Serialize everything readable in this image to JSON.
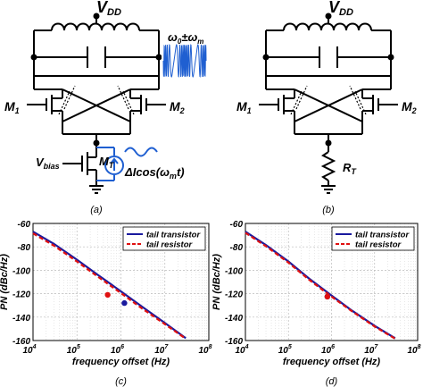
{
  "circuit_a": {
    "vdd": "V",
    "vdd_sub": "DD",
    "m1": "M",
    "m1_sub": "1",
    "m2": "M",
    "m2_sub": "2",
    "mt": "M",
    "mt_sub": "T",
    "vbias": "V",
    "vbias_sub": "bias",
    "mod_signal": "ΔIcos(ω",
    "mod_signal_sub": "m",
    "mod_signal_end": "t)",
    "sideband_label": "ω",
    "sideband_label_sub0": "0",
    "sideband_label_mid": "±ω",
    "sideband_label_sub1": "m",
    "caption": "(a)"
  },
  "circuit_b": {
    "vdd": "V",
    "vdd_sub": "DD",
    "m1": "M",
    "m1_sub": "1",
    "m2": "M",
    "m2_sub": "2",
    "rt": "R",
    "rt_sub": "T",
    "caption": "(b)"
  },
  "colors": {
    "tail_transistor": "#1a1a9e",
    "tail_resistor": "#e01010",
    "modulation": "#1f5fd1",
    "wire": "#000000"
  },
  "chart_data": [
    {
      "type": "line",
      "caption": "(c)",
      "xlabel": "frequency offset (Hz)",
      "ylabel": "PN (dBc/Hz)",
      "xscale": "log",
      "xlim": [
        10000,
        100000000
      ],
      "ylim": [
        -160,
        -60
      ],
      "x_ticks_exp": [
        "4",
        "5",
        "6",
        "7",
        "8"
      ],
      "x_ticks_base": "10",
      "y_ticks": [
        "-60",
        "-80",
        "-100",
        "-120",
        "-140",
        "-160"
      ],
      "grid": true,
      "legend": "top-right",
      "series": [
        {
          "name": "tail transistor",
          "style": "solid",
          "x": [
            10000,
            30000,
            100000,
            300000,
            1000000,
            3000000,
            10000000,
            30000000
          ],
          "y": [
            -67,
            -77.5,
            -91,
            -104,
            -118,
            -131,
            -145,
            -158
          ]
        },
        {
          "name": "tail resistor",
          "style": "dashed",
          "x": [
            10000,
            30000,
            100000,
            300000,
            1000000,
            3000000,
            10000000,
            30000000
          ],
          "y": [
            -68.5,
            -79,
            -92.5,
            -105.5,
            -119.5,
            -132.5,
            -146,
            -158.5
          ]
        }
      ],
      "markers": [
        {
          "series": 0,
          "x": 1200000,
          "y": -128
        },
        {
          "series": 1,
          "x": 500000,
          "y": -121
        }
      ]
    },
    {
      "type": "line",
      "caption": "(d)",
      "xlabel": "frequency offset (Hz)",
      "ylabel": "PN (dBc/Hz)",
      "xscale": "log",
      "xlim": [
        10000,
        100000000
      ],
      "ylim": [
        -160,
        -60
      ],
      "x_ticks_exp": [
        "4",
        "5",
        "6",
        "7",
        "8"
      ],
      "x_ticks_base": "10",
      "y_ticks": [
        "-60",
        "-80",
        "-100",
        "-120",
        "-140",
        "-160"
      ],
      "grid": true,
      "legend": "top-right",
      "series": [
        {
          "name": "tail transistor",
          "style": "solid",
          "x": [
            10000,
            30000,
            100000,
            300000,
            1000000,
            3000000,
            10000000,
            30000000
          ],
          "y": [
            -67,
            -78.5,
            -92.5,
            -107,
            -121.5,
            -134.5,
            -147.5,
            -158
          ]
        },
        {
          "name": "tail resistor",
          "style": "dashed",
          "x": [
            10000,
            30000,
            100000,
            300000,
            1000000,
            3000000,
            10000000,
            30000000
          ],
          "y": [
            -68,
            -79.5,
            -93.5,
            -108,
            -122.5,
            -135,
            -148,
            -158.5
          ]
        }
      ],
      "markers": [
        {
          "series": 0,
          "x": 800000,
          "y": -122.5
        },
        {
          "series": 1,
          "x": 800000,
          "y": -122.5
        }
      ]
    }
  ]
}
